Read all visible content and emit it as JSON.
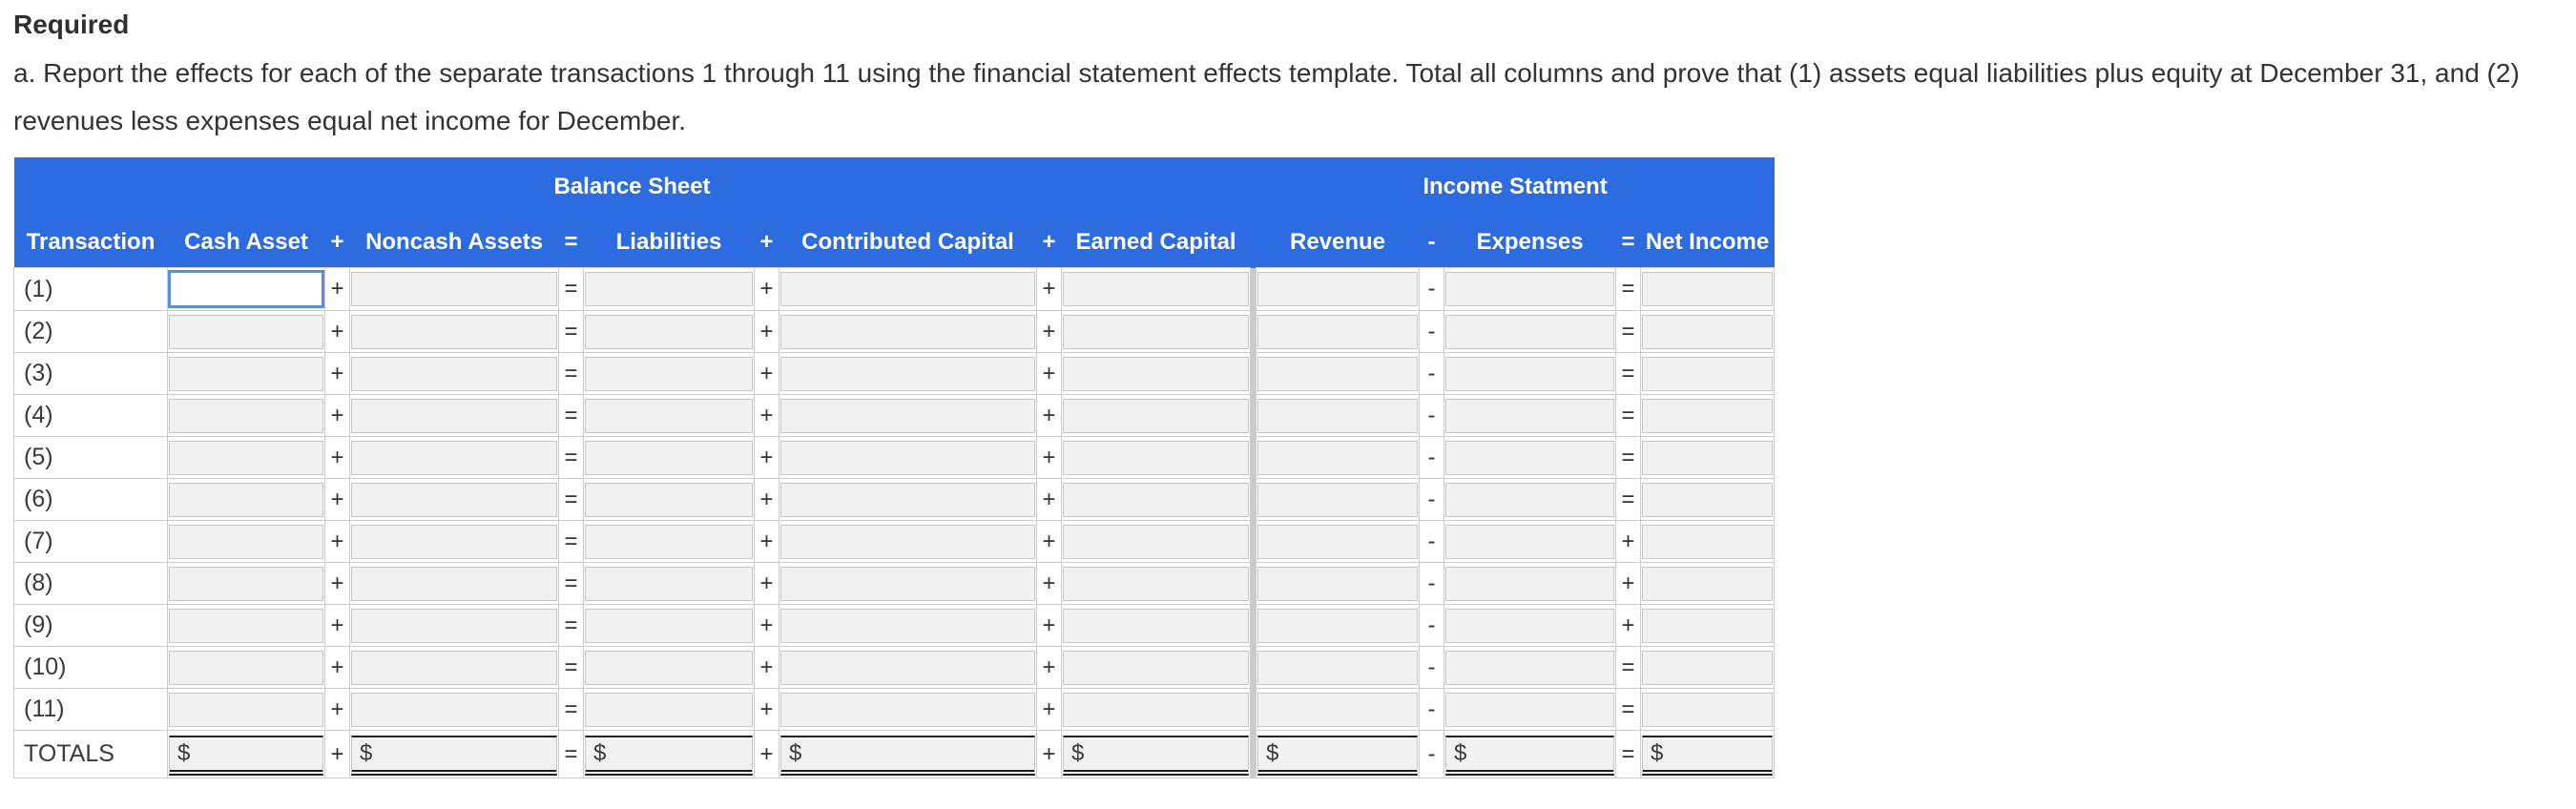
{
  "page": {
    "heading": "Required",
    "instructions": "a. Report the effects for each of the separate transactions 1 through 11 using the financial statement effects template. Total all columns and prove that (1) assets equal liabilities plus equity at December 31, and (2) revenues less expenses equal net income for December."
  },
  "table": {
    "section_headers": [
      "Balance Sheet",
      "Income Statment"
    ],
    "columns": [
      "Transaction",
      "Cash Asset",
      "+",
      "Noncash Assets",
      "=",
      "Liabilities",
      "+",
      "Contributed Capital",
      "+",
      "Earned Capital",
      "Revenue",
      "-",
      "Expenses",
      "=",
      "Net Income"
    ],
    "body_separators": [
      "+",
      "=",
      "+",
      "+",
      "-"
    ],
    "rows": [
      {
        "label": "(1)",
        "values": [
          "",
          "",
          "",
          "",
          "",
          "",
          "",
          ""
        ],
        "final_separator": "=",
        "focused_field": 0
      },
      {
        "label": "(2)",
        "values": [
          "",
          "",
          "",
          "",
          "",
          "",
          "",
          ""
        ],
        "final_separator": "="
      },
      {
        "label": "(3)",
        "values": [
          "",
          "",
          "",
          "",
          "",
          "",
          "",
          ""
        ],
        "final_separator": "="
      },
      {
        "label": "(4)",
        "values": [
          "",
          "",
          "",
          "",
          "",
          "",
          "",
          ""
        ],
        "final_separator": "="
      },
      {
        "label": "(5)",
        "values": [
          "",
          "",
          "",
          "",
          "",
          "",
          "",
          ""
        ],
        "final_separator": "="
      },
      {
        "label": "(6)",
        "values": [
          "",
          "",
          "",
          "",
          "",
          "",
          "",
          ""
        ],
        "final_separator": "="
      },
      {
        "label": "(7)",
        "values": [
          "",
          "",
          "",
          "",
          "",
          "",
          "",
          ""
        ],
        "final_separator": "+"
      },
      {
        "label": "(8)",
        "values": [
          "",
          "",
          "",
          "",
          "",
          "",
          "",
          ""
        ],
        "final_separator": "+"
      },
      {
        "label": "(9)",
        "values": [
          "",
          "",
          "",
          "",
          "",
          "",
          "",
          ""
        ],
        "final_separator": "+"
      },
      {
        "label": "(10)",
        "values": [
          "",
          "",
          "",
          "",
          "",
          "",
          "",
          ""
        ],
        "final_separator": "="
      },
      {
        "label": "(11)",
        "values": [
          "",
          "",
          "",
          "",
          "",
          "",
          "",
          ""
        ],
        "final_separator": "="
      }
    ],
    "totals_row": {
      "label": "TOTALS",
      "currency_symbol": "$",
      "values": [
        "",
        "",
        "",
        "",
        "",
        "",
        "",
        ""
      ],
      "final_separator": "="
    }
  },
  "colors": {
    "header_blue": "#2d6be0",
    "header_text": "#ffffff",
    "focus_border": "#5b8de9",
    "field_bg": "#f1f1f1",
    "field_border": "#c7c7c7",
    "grid_line": "#cccccc",
    "section_divider": "#cbcbcb",
    "total_rule": "#222222",
    "text": "#333333"
  }
}
